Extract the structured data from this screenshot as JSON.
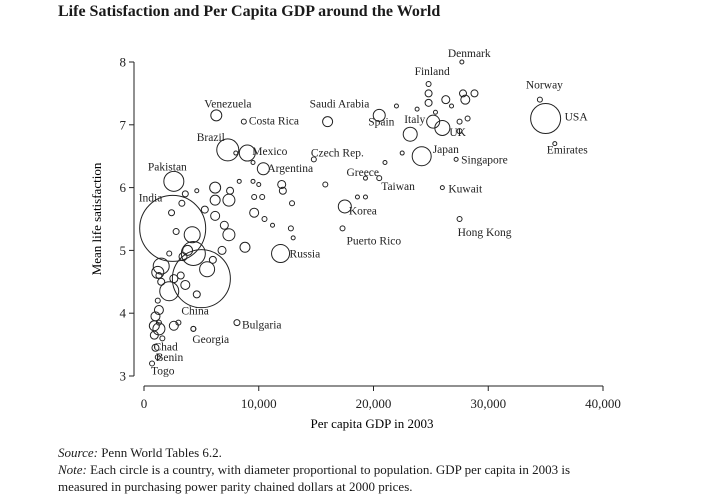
{
  "title": "Life Satisfaction and Per Capita GDP around the World",
  "notes": {
    "source_label": "Source:",
    "source_text": "Penn World Tables 6.2.",
    "note_label": "Note:",
    "note_line1": "Each circle is a country, with diameter proportional to population. GDP per capita in 2003 is",
    "note_line2": "measured in purchasing power parity chained dollars at 2000 prices."
  },
  "chart_data": {
    "type": "scatter",
    "title": "Life Satisfaction and Per Capita GDP around the World",
    "xlabel": "Per capita GDP in 2003",
    "ylabel": "Mean life satisfaction",
    "xlim": [
      0,
      40000
    ],
    "ylim": [
      3,
      8
    ],
    "xticks": [
      0,
      10000,
      20000,
      30000,
      40000
    ],
    "xtick_labels": [
      "0",
      "10,000",
      "20,000",
      "30,000",
      "40,000"
    ],
    "yticks": [
      3,
      4,
      5,
      6,
      7,
      8
    ],
    "ytick_labels": [
      "3",
      "4",
      "5",
      "6",
      "7",
      "8"
    ],
    "grid": false,
    "legend": "none",
    "marker": "hollow circle, diameter proportional to population",
    "labeled_points": [
      {
        "name": "Denmark",
        "x": 27700,
        "y": 8.0,
        "d": 4
      },
      {
        "name": "Finland",
        "x": 24800,
        "y": 7.65,
        "d": 5
      },
      {
        "name": "Norway",
        "x": 34500,
        "y": 7.4,
        "d": 5
      },
      {
        "name": "USA",
        "x": 35000,
        "y": 7.1,
        "d": 30
      },
      {
        "name": "Emirates",
        "x": 35800,
        "y": 6.7,
        "d": 4
      },
      {
        "name": "Venezuela",
        "x": 6300,
        "y": 7.15,
        "d": 11
      },
      {
        "name": "Costa Rica",
        "x": 8700,
        "y": 7.05,
        "d": 5
      },
      {
        "name": "Saudi Arabia",
        "x": 16000,
        "y": 7.05,
        "d": 10
      },
      {
        "name": "Spain",
        "x": 20500,
        "y": 7.15,
        "d": 12
      },
      {
        "name": "Italy",
        "x": 23200,
        "y": 6.85,
        "d": 14
      },
      {
        "name": "UK",
        "x": 26000,
        "y": 6.95,
        "d": 15
      },
      {
        "name": "Japan",
        "x": 24200,
        "y": 6.5,
        "d": 19
      },
      {
        "name": "Singapore",
        "x": 27200,
        "y": 6.45,
        "d": 4
      },
      {
        "name": "Brazil",
        "x": 7300,
        "y": 6.6,
        "d": 22
      },
      {
        "name": "Mexico",
        "x": 9000,
        "y": 6.55,
        "d": 16
      },
      {
        "name": "Czech Rep.",
        "x": 14800,
        "y": 6.45,
        "d": 5
      },
      {
        "name": "Argentina",
        "x": 10400,
        "y": 6.3,
        "d": 12
      },
      {
        "name": "Greece",
        "x": 19300,
        "y": 6.15,
        "d": 4
      },
      {
        "name": "Taiwan",
        "x": 20500,
        "y": 6.15,
        "d": 5
      },
      {
        "name": "Kuwait",
        "x": 26000,
        "y": 6.0,
        "d": 4
      },
      {
        "name": "Pakistan",
        "x": 2600,
        "y": 6.1,
        "d": 20
      },
      {
        "name": "India",
        "x": 2500,
        "y": 5.35,
        "d": 66
      },
      {
        "name": "Korea",
        "x": 17500,
        "y": 5.7,
        "d": 13
      },
      {
        "name": "Puerto Rico",
        "x": 17300,
        "y": 5.35,
        "d": 5
      },
      {
        "name": "Hong Kong",
        "x": 27500,
        "y": 5.5,
        "d": 5
      },
      {
        "name": "Russia",
        "x": 11900,
        "y": 4.95,
        "d": 18
      },
      {
        "name": "China",
        "x": 5000,
        "y": 4.55,
        "d": 58
      },
      {
        "name": "Bulgaria",
        "x": 8100,
        "y": 3.85,
        "d": 6
      },
      {
        "name": "Georgia",
        "x": 4300,
        "y": 3.75,
        "d": 5
      },
      {
        "name": "Chad",
        "x": 1000,
        "y": 3.45,
        "d": 7
      },
      {
        "name": "Benin",
        "x": 1200,
        "y": 3.3,
        "d": 5
      },
      {
        "name": "Togo",
        "x": 700,
        "y": 3.2,
        "d": 5
      }
    ],
    "unlabeled_points": [
      {
        "x": 22000,
        "y": 7.3,
        "d": 4
      },
      {
        "x": 23800,
        "y": 7.25,
        "d": 4
      },
      {
        "x": 24800,
        "y": 7.5,
        "d": 7
      },
      {
        "x": 24800,
        "y": 7.35,
        "d": 7
      },
      {
        "x": 25400,
        "y": 7.2,
        "d": 4
      },
      {
        "x": 26300,
        "y": 7.4,
        "d": 8
      },
      {
        "x": 26800,
        "y": 7.3,
        "d": 4
      },
      {
        "x": 27800,
        "y": 7.5,
        "d": 7
      },
      {
        "x": 28000,
        "y": 7.4,
        "d": 9
      },
      {
        "x": 28800,
        "y": 7.5,
        "d": 7
      },
      {
        "x": 27500,
        "y": 7.05,
        "d": 5
      },
      {
        "x": 28200,
        "y": 7.1,
        "d": 5
      },
      {
        "x": 27500,
        "y": 6.9,
        "d": 5
      },
      {
        "x": 25200,
        "y": 7.05,
        "d": 13
      },
      {
        "x": 22500,
        "y": 6.55,
        "d": 4
      },
      {
        "x": 21000,
        "y": 6.4,
        "d": 4
      },
      {
        "x": 15800,
        "y": 6.05,
        "d": 5
      },
      {
        "x": 18600,
        "y": 5.85,
        "d": 4
      },
      {
        "x": 19300,
        "y": 5.85,
        "d": 4
      },
      {
        "x": 12000,
        "y": 6.05,
        "d": 8
      },
      {
        "x": 12100,
        "y": 5.95,
        "d": 7
      },
      {
        "x": 12900,
        "y": 5.75,
        "d": 5
      },
      {
        "x": 9500,
        "y": 6.4,
        "d": 4
      },
      {
        "x": 9500,
        "y": 6.1,
        "d": 4
      },
      {
        "x": 8300,
        "y": 6.1,
        "d": 4
      },
      {
        "x": 6200,
        "y": 6.0,
        "d": 11
      },
      {
        "x": 6200,
        "y": 5.8,
        "d": 10
      },
      {
        "x": 7500,
        "y": 5.95,
        "d": 7
      },
      {
        "x": 7400,
        "y": 5.8,
        "d": 12
      },
      {
        "x": 9600,
        "y": 5.85,
        "d": 5
      },
      {
        "x": 10300,
        "y": 5.85,
        "d": 5
      },
      {
        "x": 9600,
        "y": 5.6,
        "d": 9
      },
      {
        "x": 10500,
        "y": 5.5,
        "d": 5
      },
      {
        "x": 11200,
        "y": 5.4,
        "d": 4
      },
      {
        "x": 12800,
        "y": 5.35,
        "d": 5
      },
      {
        "x": 13000,
        "y": 5.2,
        "d": 4
      },
      {
        "x": 8800,
        "y": 5.05,
        "d": 10
      },
      {
        "x": 6800,
        "y": 5.0,
        "d": 8
      },
      {
        "x": 7000,
        "y": 5.4,
        "d": 8
      },
      {
        "x": 7400,
        "y": 5.25,
        "d": 12
      },
      {
        "x": 5300,
        "y": 5.65,
        "d": 7
      },
      {
        "x": 6200,
        "y": 5.55,
        "d": 9
      },
      {
        "x": 4200,
        "y": 5.25,
        "d": 16
      },
      {
        "x": 3800,
        "y": 5.0,
        "d": 10
      },
      {
        "x": 3400,
        "y": 4.9,
        "d": 8
      },
      {
        "x": 4300,
        "y": 4.95,
        "d": 24
      },
      {
        "x": 5500,
        "y": 4.7,
        "d": 15
      },
      {
        "x": 6000,
        "y": 4.85,
        "d": 7
      },
      {
        "x": 1500,
        "y": 4.75,
        "d": 16
      },
      {
        "x": 1200,
        "y": 4.65,
        "d": 12
      },
      {
        "x": 1500,
        "y": 4.5,
        "d": 7
      },
      {
        "x": 2600,
        "y": 4.55,
        "d": 8
      },
      {
        "x": 3200,
        "y": 4.6,
        "d": 7
      },
      {
        "x": 2200,
        "y": 4.35,
        "d": 19
      },
      {
        "x": 3600,
        "y": 4.45,
        "d": 9
      },
      {
        "x": 4600,
        "y": 4.3,
        "d": 7
      },
      {
        "x": 1200,
        "y": 4.2,
        "d": 5
      },
      {
        "x": 1300,
        "y": 4.05,
        "d": 9
      },
      {
        "x": 1000,
        "y": 3.95,
        "d": 9
      },
      {
        "x": 1300,
        "y": 3.85,
        "d": 5
      },
      {
        "x": 900,
        "y": 3.8,
        "d": 10
      },
      {
        "x": 1300,
        "y": 3.75,
        "d": 12
      },
      {
        "x": 900,
        "y": 3.65,
        "d": 8
      },
      {
        "x": 1600,
        "y": 3.6,
        "d": 5
      },
      {
        "x": 2600,
        "y": 3.8,
        "d": 9
      },
      {
        "x": 3000,
        "y": 3.85,
        "d": 5
      },
      {
        "x": 4300,
        "y": 3.75,
        "d": 5
      },
      {
        "x": 1300,
        "y": 4.6,
        "d": 6
      },
      {
        "x": 2200,
        "y": 4.95,
        "d": 5
      },
      {
        "x": 2800,
        "y": 5.3,
        "d": 6
      },
      {
        "x": 2400,
        "y": 5.6,
        "d": 6
      },
      {
        "x": 3300,
        "y": 5.75,
        "d": 6
      },
      {
        "x": 3600,
        "y": 5.9,
        "d": 6
      },
      {
        "x": 4600,
        "y": 5.95,
        "d": 4
      },
      {
        "x": 8000,
        "y": 6.55,
        "d": 4
      },
      {
        "x": 10000,
        "y": 6.05,
        "d": 4
      }
    ]
  }
}
